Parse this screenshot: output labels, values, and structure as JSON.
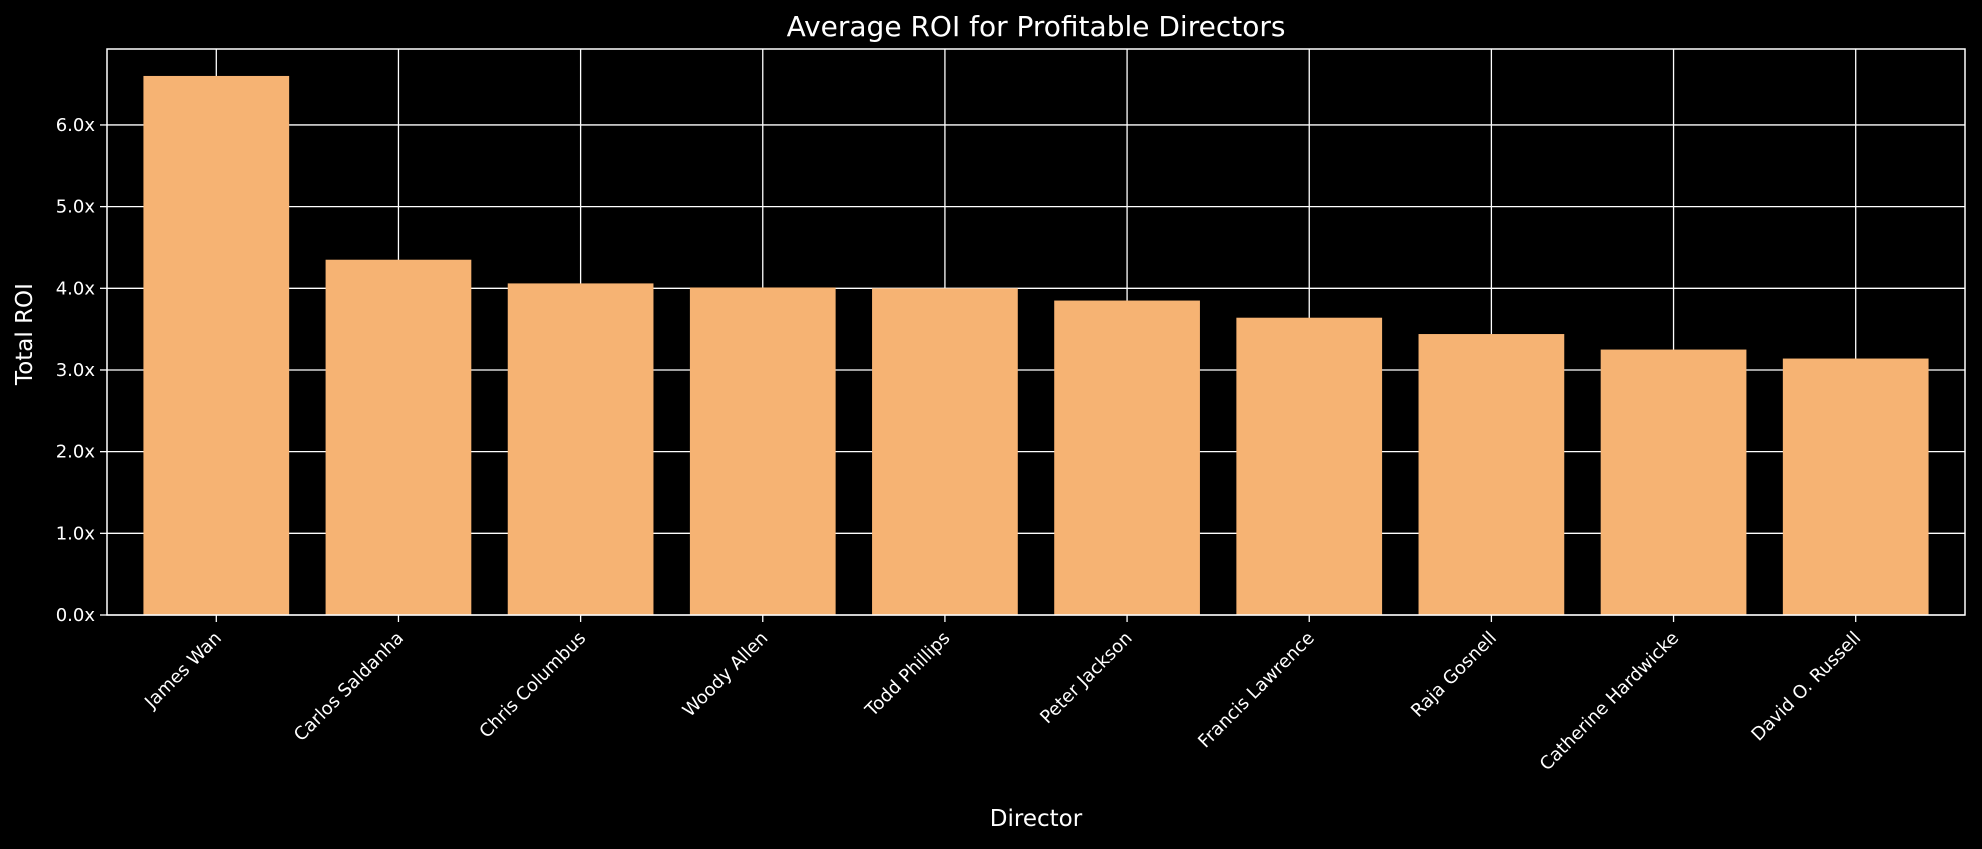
{
  "chart_data": {
    "type": "bar",
    "title": "Average ROI for Profitable Directors",
    "xlabel": "Director",
    "ylabel": "Total ROI",
    "categories": [
      "James Wan",
      "Carlos Saldanha",
      "Chris Columbus",
      "Woody Allen",
      "Todd Phillips",
      "Peter Jackson",
      "Francis Lawrence",
      "Raja Gosnell",
      "Catherine Hardwicke",
      "David O. Russell"
    ],
    "values": [
      6.6,
      4.35,
      4.06,
      4.01,
      4.0,
      3.85,
      3.64,
      3.44,
      3.25,
      3.14
    ],
    "ylim": [
      0,
      6.93
    ],
    "yticks": [
      0,
      1,
      2,
      3,
      4,
      5,
      6
    ],
    "ytick_labels": [
      "0.0x",
      "1.0x",
      "2.0x",
      "3.0x",
      "4.0x",
      "5.0x",
      "6.0x"
    ],
    "grid": true,
    "bar_color": "#f6b373",
    "background_color": "#000000",
    "text_color": "#ffffff",
    "grid_color": "#ffffff"
  }
}
